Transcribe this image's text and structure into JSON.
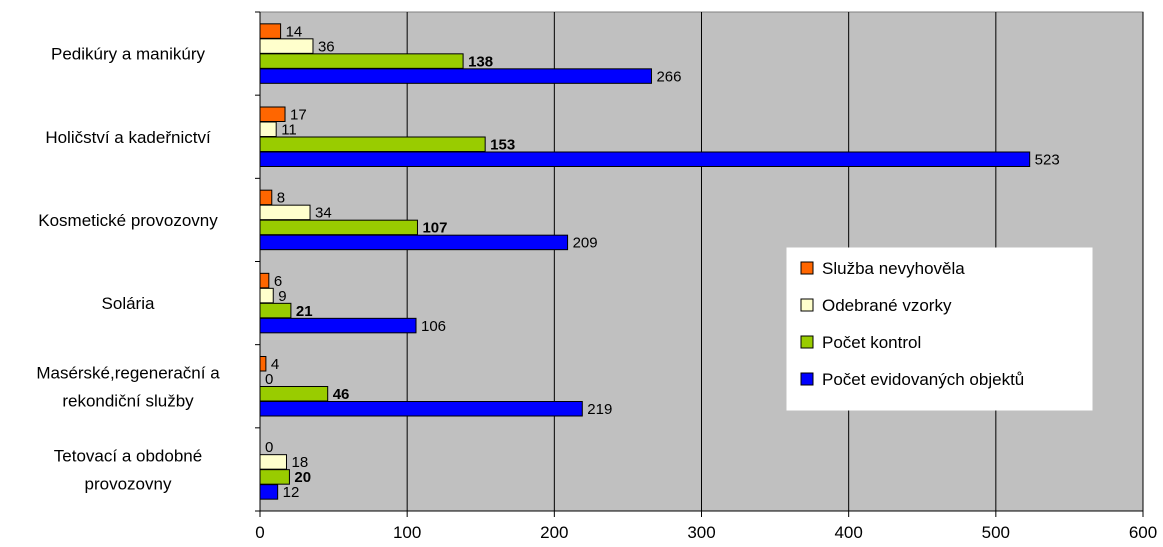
{
  "chart_data": {
    "type": "bar",
    "orientation": "horizontal",
    "categories": [
      [
        "Pedikúry a manikúry"
      ],
      [
        "Holičství a kadeřnictví"
      ],
      [
        "Kosmetické provozovny"
      ],
      [
        "Solária"
      ],
      [
        "Masérské,regenerační a",
        "rekondiční služby"
      ],
      [
        "Tetovací a obdobné",
        "provozovny"
      ]
    ],
    "series": [
      {
        "name": "Služba nevyhověla",
        "color": "#ff6600",
        "values": [
          14,
          17,
          8,
          6,
          4,
          0
        ],
        "bold_labels": false
      },
      {
        "name": "Odebrané vzorky",
        "color": "#ffffcc",
        "values": [
          36,
          11,
          34,
          9,
          0,
          18
        ],
        "bold_labels": false
      },
      {
        "name": "Počet kontrol",
        "color": "#99cc00",
        "values": [
          138,
          153,
          107,
          21,
          46,
          20
        ],
        "bold_labels": true
      },
      {
        "name": "Počet evidovaných objektů",
        "color": "#0000ff",
        "values": [
          266,
          523,
          209,
          106,
          219,
          12
        ],
        "bold_labels": false
      }
    ],
    "xlim": [
      0,
      600
    ],
    "xticks": [
      0,
      100,
      200,
      300,
      400,
      500,
      600
    ],
    "grid": true,
    "plot_background": "#c0c0c0",
    "legend_position": "right"
  }
}
